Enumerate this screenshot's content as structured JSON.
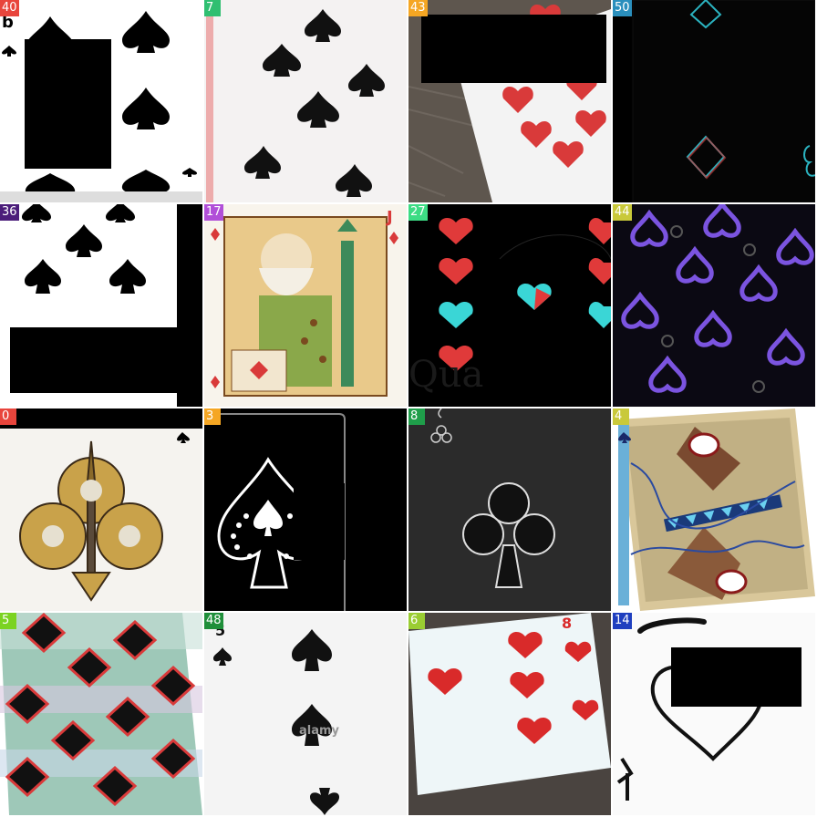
{
  "grid": {
    "tiles": [
      {
        "label": "40",
        "badge_color": "#e8453c",
        "corner_text": "b"
      },
      {
        "label": "7",
        "badge_color": "#2fbf71"
      },
      {
        "label": "43",
        "badge_color": "#f5a623"
      },
      {
        "label": "50",
        "badge_color": "#2a8fbd"
      },
      {
        "label": "36",
        "badge_color": "#4b1d7a"
      },
      {
        "label": "17",
        "badge_color": "#b14fd8",
        "corner_text": "J"
      },
      {
        "label": "27",
        "badge_color": "#3ddc84"
      },
      {
        "label": "44",
        "badge_color": "#c9c93a"
      },
      {
        "label": "0",
        "badge_color": "#e8453c"
      },
      {
        "label": "3",
        "badge_color": "#f5a623"
      },
      {
        "label": "8",
        "badge_color": "#1f9e4a"
      },
      {
        "label": "4",
        "badge_color": "#c9c93a"
      },
      {
        "label": "5",
        "badge_color": "#7bd321"
      },
      {
        "label": "48",
        "badge_color": "#1f8f3a",
        "watermark": "alamy",
        "corner_text": "5"
      },
      {
        "label": "6",
        "badge_color": "#9acd32",
        "corner_text": "8"
      },
      {
        "label": "14",
        "badge_color": "#1f3fbf"
      }
    ]
  }
}
